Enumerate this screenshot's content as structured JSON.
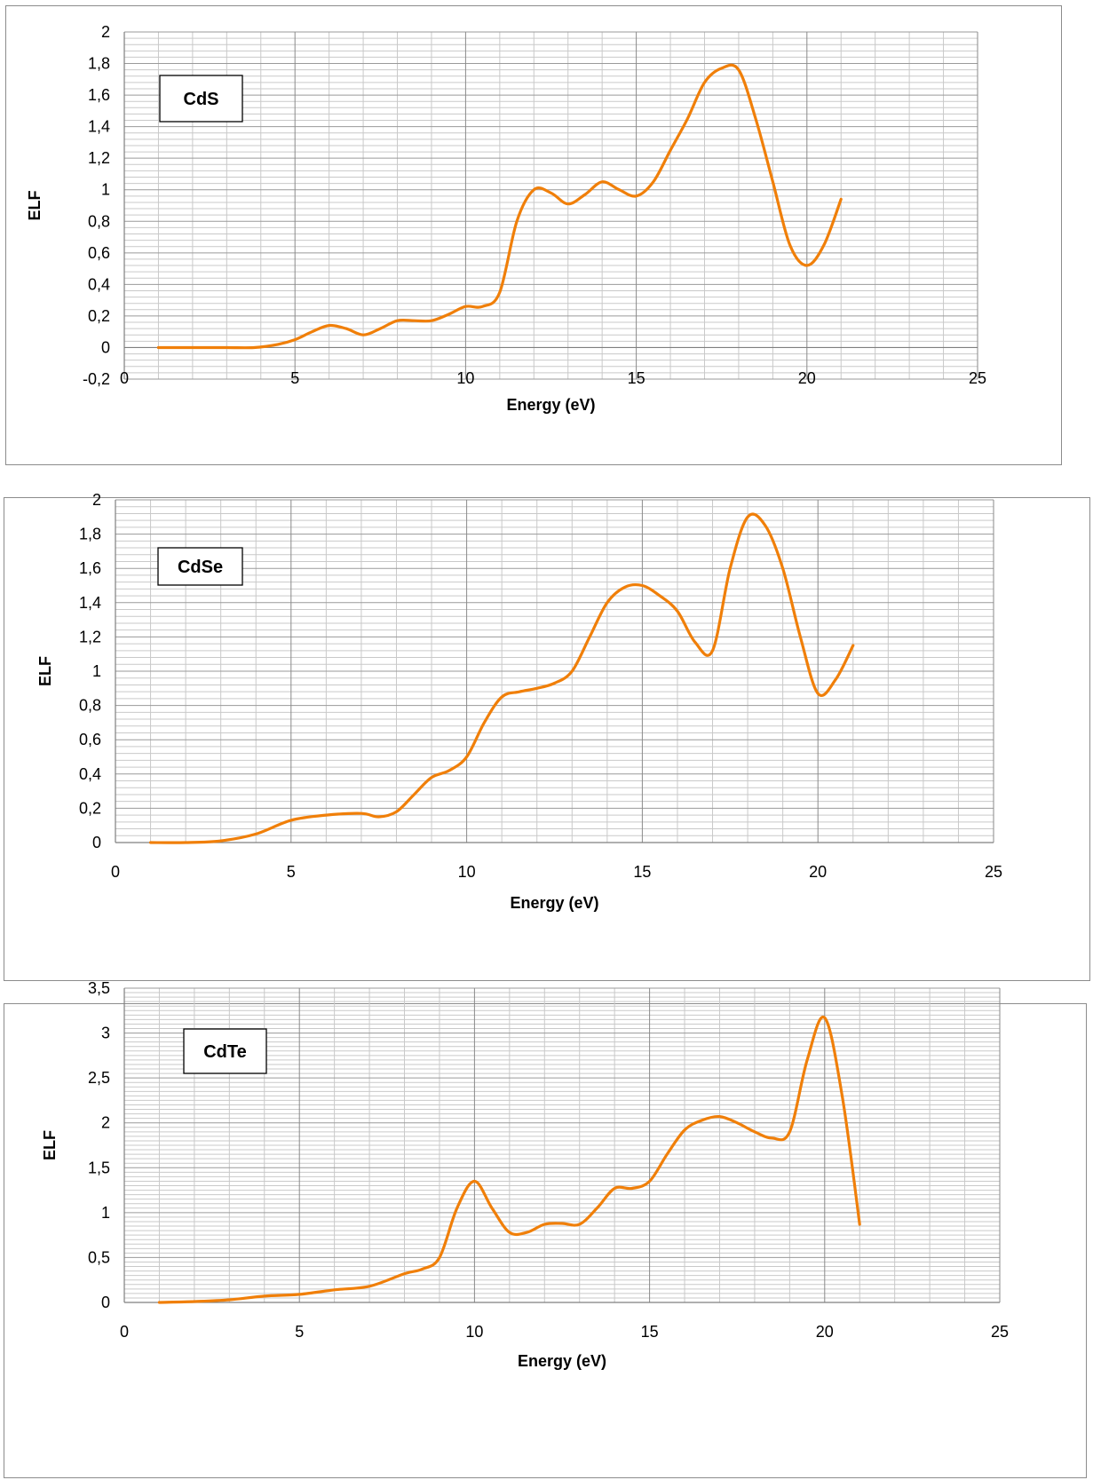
{
  "chart_data": [
    {
      "type": "line",
      "title": "",
      "box_label": "CdS",
      "xlabel": "Energy (eV)",
      "ylabel": "ELF",
      "xlim": [
        0,
        25
      ],
      "ylim": [
        -0.2,
        2
      ],
      "xticks": [
        "0",
        "5",
        "10",
        "15",
        "20",
        "25"
      ],
      "yticks": [
        "-0,2",
        "0",
        "0,2",
        "0,4",
        "0,6",
        "0,8",
        "1",
        "1,2",
        "1,4",
        "1,6",
        "1,8",
        "2"
      ],
      "grid": true,
      "series_color": "#f07f09",
      "series": [
        {
          "x": [
            1,
            2,
            3,
            3.8,
            4.5,
            5,
            5.5,
            6,
            6.5,
            7,
            7.5,
            8,
            8.5,
            9,
            9.5,
            10,
            10.5,
            11,
            11.5,
            12,
            12.5,
            13,
            13.5,
            14,
            14.5,
            15,
            15.5,
            16,
            16.5,
            17,
            17.5,
            18,
            18.5,
            19,
            19.5,
            20,
            20.5,
            21
          ],
          "y": [
            0,
            0,
            0,
            0,
            0.02,
            0.05,
            0.1,
            0.14,
            0.12,
            0.08,
            0.12,
            0.17,
            0.17,
            0.17,
            0.21,
            0.26,
            0.26,
            0.35,
            0.8,
            1.0,
            0.98,
            0.91,
            0.97,
            1.05,
            1.0,
            0.96,
            1.05,
            1.25,
            1.45,
            1.68,
            1.77,
            1.76,
            1.45,
            1.05,
            0.65,
            0.52,
            0.65,
            0.94
          ]
        }
      ]
    },
    {
      "type": "line",
      "title": "",
      "box_label": "CdSe",
      "xlabel": "Energy (eV)",
      "ylabel": "ELF",
      "xlim": [
        0,
        25
      ],
      "ylim": [
        0,
        2
      ],
      "xticks": [
        "0",
        "5",
        "10",
        "15",
        "20",
        "25"
      ],
      "yticks": [
        "0",
        "0,2",
        "0,4",
        "0,6",
        "0,8",
        "1",
        "1,2",
        "1,4",
        "1,6",
        "1,8",
        "2"
      ],
      "grid": true,
      "series_color": "#f07f09",
      "series": [
        {
          "x": [
            1,
            2,
            3,
            4,
            5,
            6,
            7,
            7.5,
            8,
            8.5,
            9,
            9.5,
            10,
            10.5,
            11,
            11.5,
            12,
            12.5,
            13,
            13.5,
            14,
            14.5,
            15,
            15.5,
            16,
            16.5,
            17,
            17.5,
            18,
            18.5,
            19,
            19.5,
            20,
            20.5,
            21
          ],
          "y": [
            0,
            0,
            0.01,
            0.05,
            0.13,
            0.16,
            0.17,
            0.15,
            0.18,
            0.28,
            0.38,
            0.42,
            0.5,
            0.7,
            0.85,
            0.88,
            0.9,
            0.93,
            1.0,
            1.2,
            1.4,
            1.49,
            1.5,
            1.44,
            1.35,
            1.17,
            1.12,
            1.6,
            1.9,
            1.85,
            1.6,
            1.2,
            0.87,
            0.95,
            1.15
          ]
        }
      ]
    },
    {
      "type": "line",
      "title": "",
      "box_label": "CdTe",
      "xlabel": "Energy (eV)",
      "ylabel": "ELF",
      "xlim": [
        0,
        25
      ],
      "ylim": [
        0,
        3.5
      ],
      "xticks": [
        "0",
        "5",
        "10",
        "15",
        "20",
        "25"
      ],
      "yticks": [
        "0",
        "0,5",
        "1",
        "1,5",
        "2",
        "2,5",
        "3",
        "3,5"
      ],
      "grid": true,
      "series_color": "#f07f09",
      "series": [
        {
          "x": [
            1,
            2,
            3,
            4,
            5,
            6,
            7,
            8,
            8.5,
            9,
            9.5,
            10,
            10.5,
            11,
            11.5,
            12,
            12.5,
            13,
            13.5,
            14,
            14.5,
            15,
            15.5,
            16,
            16.5,
            17,
            17.5,
            18,
            18.5,
            19,
            19.5,
            20,
            20.5,
            21
          ],
          "y": [
            0,
            0.01,
            0.03,
            0.07,
            0.09,
            0.14,
            0.18,
            0.32,
            0.37,
            0.5,
            1.05,
            1.35,
            1.05,
            0.78,
            0.78,
            0.87,
            0.88,
            0.87,
            1.05,
            1.27,
            1.27,
            1.35,
            1.65,
            1.92,
            2.03,
            2.07,
            2.0,
            1.9,
            1.83,
            1.9,
            2.7,
            3.17,
            2.3,
            0.87
          ]
        }
      ]
    }
  ]
}
